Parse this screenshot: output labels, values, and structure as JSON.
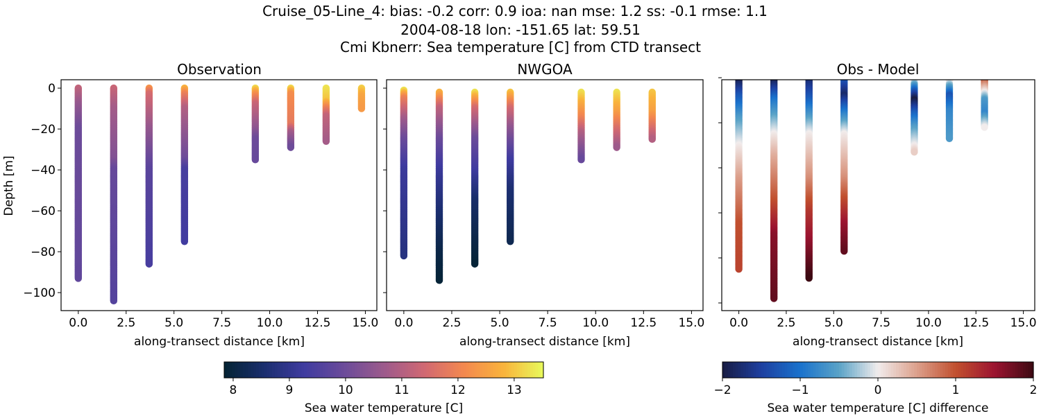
{
  "title_lines": [
    "Cruise_05-Line_4: bias: -0.2  corr: 0.9  ioa: nan  mse: 1.2  ss: -0.1  rmse: 1.1",
    "2004-08-18 lon: -151.65 lat: 59.51",
    "Cmi Kbnerr: Sea temperature [C] from CTD transect"
  ],
  "chart_data": [
    {
      "type": "scatter",
      "title": "Observation",
      "xlabel": "along-transect distance [km]",
      "ylabel": "Depth [m]",
      "xlim": [
        -0.9,
        15.6
      ],
      "ylim": [
        -108.8,
        4.1
      ],
      "xticks": [
        "0.0",
        "2.5",
        "5.0",
        "7.5",
        "10.0",
        "12.5",
        "15.0"
      ],
      "yticks": [
        "0",
        "−20",
        "−40",
        "−60",
        "−80",
        "−100"
      ],
      "colormap": "thermal",
      "color_range": [
        7.84,
        13.52
      ],
      "profiles": [
        {
          "x": 0.0,
          "points": [
            [
              0,
              11.2
            ],
            [
              -8,
              10.6
            ],
            [
              -20,
              10.0
            ],
            [
              -93,
              9.8
            ]
          ]
        },
        {
          "x": 1.85,
          "points": [
            [
              0,
              11.3
            ],
            [
              -10,
              10.8
            ],
            [
              -35,
              10.3
            ],
            [
              -40,
              9.9
            ],
            [
              -104,
              9.6
            ]
          ]
        },
        {
          "x": 3.7,
          "points": [
            [
              0,
              12.3
            ],
            [
              -3,
              11.5
            ],
            [
              -20,
              10.6
            ],
            [
              -40,
              9.7
            ],
            [
              -86,
              9.4
            ]
          ]
        },
        {
          "x": 5.55,
          "points": [
            [
              0,
              12.8
            ],
            [
              -3,
              12.0
            ],
            [
              -10,
              11.0
            ],
            [
              -35,
              10.0
            ],
            [
              -40,
              9.4
            ],
            [
              -75,
              9.3
            ]
          ]
        },
        {
          "x": 9.25,
          "points": [
            [
              0,
              13.2
            ],
            [
              -3,
              12.3
            ],
            [
              -8,
              11.3
            ],
            [
              -20,
              10.5
            ],
            [
              -25,
              10.0
            ],
            [
              -35,
              9.9
            ]
          ]
        },
        {
          "x": 11.1,
          "points": [
            [
              0,
              13.2
            ],
            [
              -3,
              12.2
            ],
            [
              -18,
              11.8
            ],
            [
              -22,
              10.8
            ],
            [
              -29,
              10.0
            ]
          ]
        },
        {
          "x": 12.95,
          "points": [
            [
              0,
              13.3
            ],
            [
              -6,
              13.0
            ],
            [
              -10,
              12.0
            ],
            [
              -14,
              11.2
            ],
            [
              -26,
              10.8
            ]
          ]
        },
        {
          "x": 14.8,
          "points": [
            [
              0,
              13.1
            ],
            [
              -4,
              12.6
            ],
            [
              -10,
              12.4
            ]
          ]
        }
      ]
    },
    {
      "type": "scatter",
      "title": "NWGOA",
      "xlabel": "along-transect distance [km]",
      "xlim": [
        -0.9,
        15.6
      ],
      "ylim": [
        -108.8,
        4.1
      ],
      "xticks": [
        "0.0",
        "2.5",
        "5.0",
        "7.5",
        "10.0",
        "12.5",
        "15.0"
      ],
      "colormap": "thermal",
      "color_range": [
        7.84,
        13.52
      ],
      "profiles": [
        {
          "x": 0.0,
          "points": [
            [
              -1,
              13.3
            ],
            [
              -5,
              12.0
            ],
            [
              -15,
              10.8
            ],
            [
              -25,
              10.0
            ],
            [
              -40,
              9.2
            ],
            [
              -82,
              8.8
            ]
          ]
        },
        {
          "x": 1.85,
          "points": [
            [
              -2,
              12.8
            ],
            [
              -10,
              11.2
            ],
            [
              -25,
              10.0
            ],
            [
              -40,
              9.2
            ],
            [
              -60,
              8.6
            ],
            [
              -80,
              8.1
            ],
            [
              -94,
              7.9
            ]
          ]
        },
        {
          "x": 3.7,
          "points": [
            [
              -2,
              13.3
            ],
            [
              -10,
              11.5
            ],
            [
              -25,
              10.0
            ],
            [
              -40,
              9.3
            ],
            [
              -55,
              8.5
            ],
            [
              -75,
              8.1
            ],
            [
              -86,
              7.9
            ]
          ]
        },
        {
          "x": 5.55,
          "points": [
            [
              -2,
              13.0
            ],
            [
              -10,
              11.5
            ],
            [
              -20,
              10.5
            ],
            [
              -35,
              9.3
            ],
            [
              -50,
              8.6
            ],
            [
              -75,
              8.2
            ]
          ]
        },
        {
          "x": 9.25,
          "points": [
            [
              -2,
              13.3
            ],
            [
              -15,
              12.0
            ],
            [
              -22,
              11.0
            ],
            [
              -35,
              9.9
            ]
          ]
        },
        {
          "x": 11.1,
          "points": [
            [
              -2,
              13.3
            ],
            [
              -12,
              12.5
            ],
            [
              -20,
              11.6
            ],
            [
              -29,
              10.7
            ]
          ]
        },
        {
          "x": 12.95,
          "points": [
            [
              -2,
              13.0
            ],
            [
              -12,
              12.5
            ],
            [
              -18,
              11.8
            ],
            [
              -25,
              11.0
            ]
          ]
        }
      ]
    },
    {
      "type": "scatter",
      "title": "Obs - Model",
      "xlabel": "along-transect distance [km]",
      "xlim": [
        -0.9,
        15.6
      ],
      "ylim": [
        -103.4,
        -0.9
      ],
      "xticks": [
        "0.0",
        "2.5",
        "5.0",
        "7.5",
        "10.0",
        "12.5",
        "15.0"
      ],
      "colormap": "balance",
      "color_range": [
        -2,
        2
      ],
      "profiles": [
        {
          "x": 0.0,
          "points": [
            [
              -1,
              -2
            ],
            [
              -8,
              -1.3
            ],
            [
              -18,
              -0.6
            ],
            [
              -30,
              0
            ],
            [
              -45,
              0.5
            ],
            [
              -65,
              1.0
            ],
            [
              -85,
              1.1
            ]
          ]
        },
        {
          "x": 1.85,
          "points": [
            [
              -1,
              -2
            ],
            [
              -10,
              -1
            ],
            [
              -25,
              0
            ],
            [
              -35,
              0.4
            ],
            [
              -55,
              1.0
            ],
            [
              -70,
              1.6
            ],
            [
              -98,
              1.8
            ]
          ]
        },
        {
          "x": 3.7,
          "points": [
            [
              -1,
              -1.8
            ],
            [
              -10,
              -1.2
            ],
            [
              -25,
              0
            ],
            [
              -45,
              0.6
            ],
            [
              -60,
              1.2
            ],
            [
              -75,
              1.6
            ],
            [
              -89,
              2.0
            ]
          ]
        },
        {
          "x": 5.55,
          "points": [
            [
              -1,
              -1.2
            ],
            [
              -8,
              -1.8
            ],
            [
              -15,
              -1.0
            ],
            [
              -25,
              0
            ],
            [
              -45,
              0.6
            ],
            [
              -65,
              1.5
            ],
            [
              -77,
              1.8
            ]
          ]
        },
        {
          "x": 9.25,
          "points": [
            [
              0,
              0.5
            ],
            [
              -3,
              -0.5
            ],
            [
              -6,
              -1.2
            ],
            [
              -10,
              -2
            ],
            [
              -16,
              -1.2
            ],
            [
              -22,
              -0.6
            ],
            [
              -33,
              0.2
            ]
          ]
        },
        {
          "x": 11.1,
          "points": [
            [
              0,
              0.6
            ],
            [
              -3,
              -0.3
            ],
            [
              -8,
              -1.3
            ],
            [
              -15,
              -0.8
            ],
            [
              -27,
              -0.6
            ]
          ]
        },
        {
          "x": 12.95,
          "points": [
            [
              0,
              1.2
            ],
            [
              -5,
              0.3
            ],
            [
              -10,
              -0.6
            ],
            [
              -16,
              -0.8
            ],
            [
              -22,
              0
            ]
          ]
        }
      ]
    }
  ],
  "colorbars": [
    {
      "label": "Sea water temperature [C]",
      "ticks": [
        "8",
        "9",
        "10",
        "11",
        "12",
        "13"
      ],
      "tick_values": [
        8,
        9,
        10,
        11,
        12,
        13
      ],
      "range": [
        7.84,
        13.52
      ],
      "colormap": "thermal"
    },
    {
      "label": "Sea water temperature [C] difference",
      "ticks": [
        "−2",
        "−1",
        "0",
        "1",
        "2"
      ],
      "tick_values": [
        -2,
        -1,
        0,
        1,
        2
      ],
      "range": [
        -2,
        2
      ],
      "colormap": "balance"
    }
  ],
  "colormaps": {
    "thermal": [
      "#042333",
      "#1a2e6e",
      "#3f3ba0",
      "#6b4b9a",
      "#9c5a8c",
      "#d06873",
      "#f3884f",
      "#f9b33c",
      "#e8fa5b"
    ],
    "balance": [
      "#181c43",
      "#1d3fa0",
      "#1a72cc",
      "#5aa3c7",
      "#f1ecec",
      "#dca08c",
      "#c1502f",
      "#9c1430",
      "#3c0912"
    ]
  }
}
